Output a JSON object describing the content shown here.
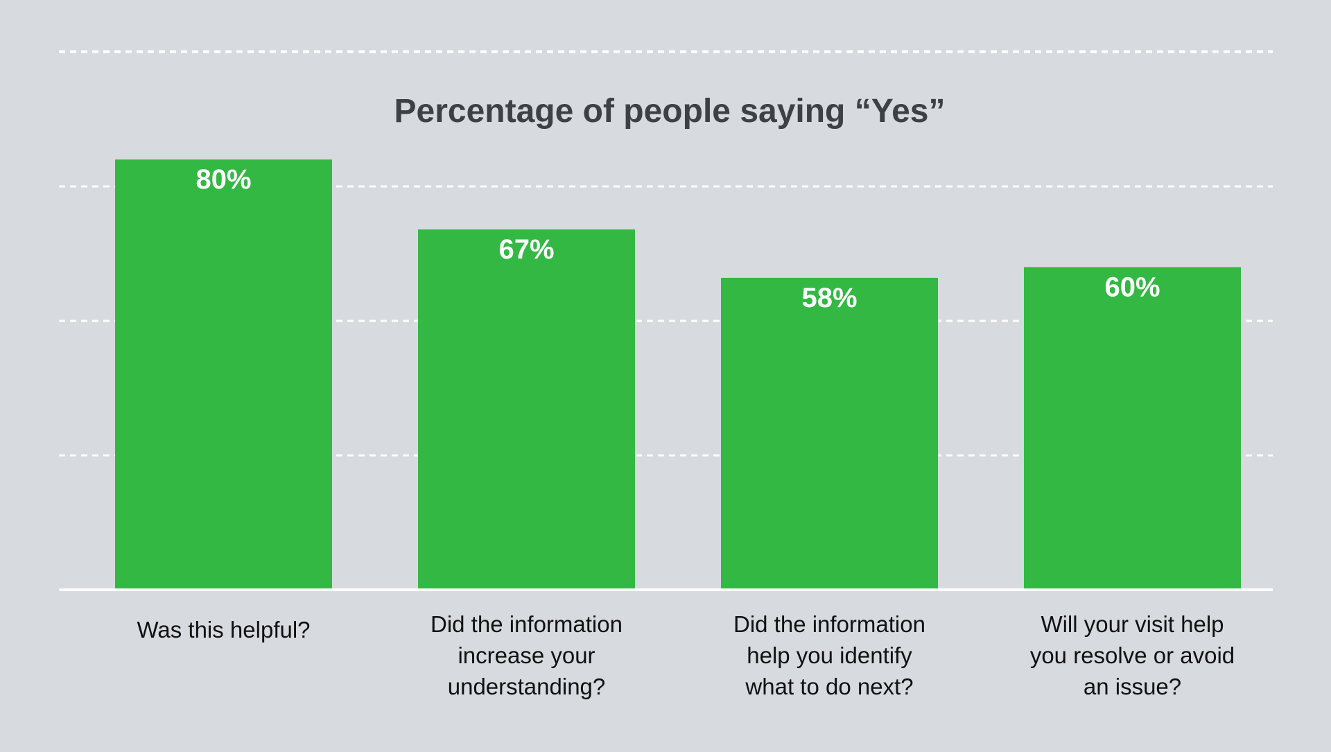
{
  "chart_data": {
    "type": "bar",
    "title": "Percentage of people saying “Yes”",
    "categories": [
      [
        "Was this helpful?"
      ],
      [
        "Did the information",
        "increase your",
        "understanding?"
      ],
      [
        "Did the information",
        "help you identify",
        "what to do next?"
      ],
      [
        "Will your visit help",
        "you resolve or avoid",
        "an issue?"
      ]
    ],
    "values": [
      80,
      67,
      58,
      60
    ],
    "value_labels": [
      "80%",
      "67%",
      "58%",
      "60%"
    ],
    "xlabel": "",
    "ylabel": "",
    "ylim": [
      0,
      100
    ],
    "gridlines": [
      25,
      50,
      75,
      100
    ],
    "grid": true,
    "legend": "none"
  },
  "colors": {
    "background": "#d7dade",
    "bar": "#33b843",
    "grid": "#ffffff",
    "axis": "#ffffff",
    "title": "#3d4045",
    "category_text": "#111111",
    "value_text": "#ffffff"
  }
}
